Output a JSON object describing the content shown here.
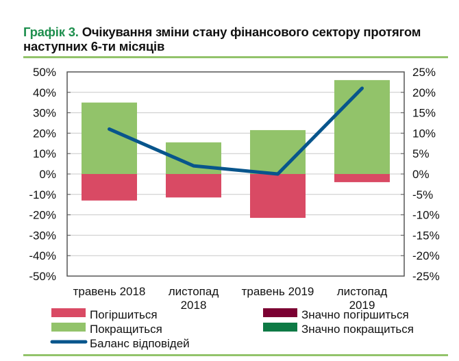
{
  "title": {
    "lead": "Графік 3.",
    "text": "Очікування зміни стану фінансового сектору протягом наступних 6-ти місяців"
  },
  "chart_data": {
    "type": "bar",
    "stacked": true,
    "categories": [
      [
        "травень 2018"
      ],
      [
        "листопад",
        "2018"
      ],
      [
        "травень 2019"
      ],
      [
        "листопад",
        "2019"
      ]
    ],
    "series": [
      {
        "name": "Погіршиться",
        "axis": "left",
        "type": "bar",
        "color": "#d94a64",
        "values": [
          -13,
          -11.5,
          -21.5,
          -4
        ]
      },
      {
        "name": "Значно погіршиться",
        "axis": "left",
        "type": "bar",
        "color": "#7b0032",
        "values": [
          0,
          0,
          0,
          0
        ]
      },
      {
        "name": "Покращиться",
        "axis": "left",
        "type": "bar",
        "color": "#92c36a",
        "values": [
          35,
          15.5,
          21.5,
          46
        ]
      },
      {
        "name": "Значно покращиться",
        "axis": "left",
        "type": "bar",
        "color": "#0e7a45",
        "values": [
          0,
          0,
          0,
          0
        ]
      },
      {
        "name": "Баланс відповідей",
        "axis": "right",
        "type": "line",
        "color": "#08558c",
        "values": [
          11,
          2,
          0,
          21
        ]
      }
    ],
    "left_axis": {
      "range": [
        -50,
        50
      ],
      "step": 10,
      "ticks": [
        "50%",
        "40%",
        "30%",
        "20%",
        "10%",
        "0%",
        "-10%",
        "-20%",
        "-30%",
        "-40%",
        "-50%"
      ]
    },
    "right_axis": {
      "range": [
        -25,
        25
      ],
      "step": 5,
      "ticks": [
        "25%",
        "20%",
        "15%",
        "10%",
        "5%",
        "0%",
        "-5%",
        "-10%",
        "-15%",
        "-20%",
        "-25%"
      ]
    },
    "grid": true,
    "legend_position": "bottom"
  }
}
